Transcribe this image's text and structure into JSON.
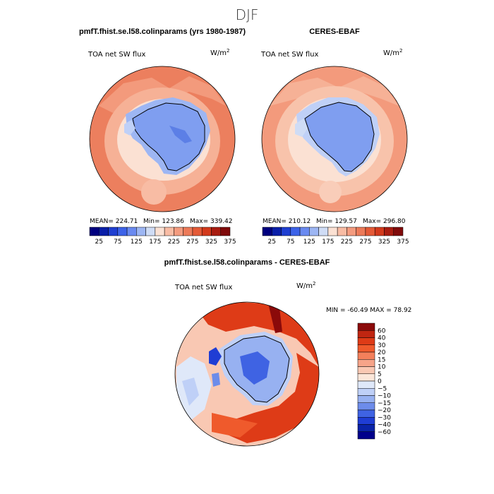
{
  "figure": {
    "season": "DJF",
    "panels": [
      {
        "title": "pmfT.fhist.se.l58.colinparams (yrs 1980-1987)",
        "variable": "TOA net SW flux",
        "units_base": "W/m",
        "units_exp": "2",
        "stats": [
          "MEAN= 224.71",
          "Min= 123.86",
          "Max= 339.42"
        ]
      },
      {
        "title": "CERES-EBAF",
        "variable": "TOA net SW flux",
        "units_base": "W/m",
        "units_exp": "2",
        "stats": [
          "MEAN= 210.12",
          "Min= 129.57",
          "Max= 296.80"
        ]
      },
      {
        "title": "pmfT.fhist.se.l58.colinparams - CERES-EBAF",
        "variable": "TOA net SW flux",
        "units_base": "W/m",
        "units_exp": "2",
        "stats": [
          "MIN = -60.49 MAX =  78.92"
        ]
      }
    ],
    "colorbar_abs": {
      "ticks": [
        "25",
        "75",
        "125",
        "175",
        "225",
        "275",
        "325",
        "375"
      ],
      "colors": [
        "#00007f",
        "#0a1fa8",
        "#1f3fd1",
        "#3d63e8",
        "#6a8af0",
        "#9db6f3",
        "#cfdcf5",
        "#fbe1d3",
        "#f8bca4",
        "#f39b7f",
        "#ec7a59",
        "#e45a37",
        "#d23a1c",
        "#a81c10",
        "#7f0a0a"
      ]
    },
    "colorbar_diff": {
      "ticks": [
        "60",
        "40",
        "30",
        "20",
        "15",
        "10",
        "5",
        "0",
        "−5",
        "−10",
        "−15",
        "−20",
        "−30",
        "−40",
        "−60"
      ],
      "colors": [
        "#8b0a0a",
        "#c02611",
        "#de3b17",
        "#ef5a2c",
        "#f3805b",
        "#f6a489",
        "#f9c8b3",
        "#fbe6d9",
        "#dfe8f9",
        "#bfd0f7",
        "#97b1f1",
        "#6d8cea",
        "#3f63e3",
        "#1f3dd4",
        "#0a23a8",
        "#00008b"
      ]
    }
  },
  "chart_data": [
    {
      "type": "heatmap",
      "title": "pmfT.fhist.se.l58.colinparams (yrs 1980-1987)",
      "variable": "TOA net SW flux",
      "units": "W/m^2",
      "projection": "south-polar-stereographic",
      "contour_levels": [
        25,
        50,
        75,
        100,
        125,
        150,
        175,
        200,
        225,
        250,
        275,
        300,
        325,
        350,
        375
      ],
      "mean": 224.71,
      "min": 123.86,
      "max": 339.42
    },
    {
      "type": "heatmap",
      "title": "CERES-EBAF",
      "variable": "TOA net SW flux",
      "units": "W/m^2",
      "projection": "south-polar-stereographic",
      "contour_levels": [
        25,
        50,
        75,
        100,
        125,
        150,
        175,
        200,
        225,
        250,
        275,
        300,
        325,
        350,
        375
      ],
      "mean": 210.12,
      "min": 129.57,
      "max": 296.8
    },
    {
      "type": "heatmap",
      "title": "pmfT.fhist.se.l58.colinparams - CERES-EBAF",
      "variable": "TOA net SW flux",
      "units": "W/m^2",
      "projection": "south-polar-stereographic",
      "contour_levels": [
        -60,
        -40,
        -30,
        -20,
        -15,
        -10,
        -5,
        0,
        5,
        10,
        15,
        20,
        30,
        40,
        60
      ],
      "min": -60.49,
      "max": 78.92
    }
  ]
}
